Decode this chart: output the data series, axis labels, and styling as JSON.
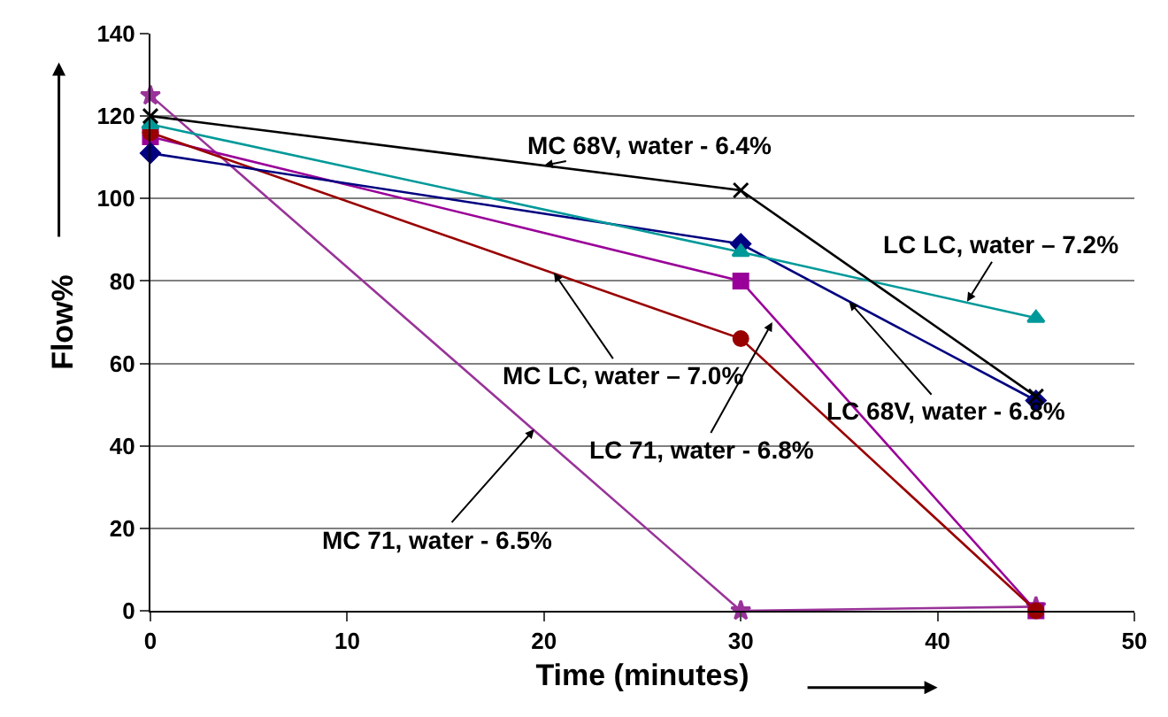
{
  "chart_data": {
    "type": "line",
    "xlabel": "Time (minutes)",
    "ylabel": "Flow%",
    "x": [
      0,
      30,
      45
    ],
    "series": [
      {
        "color": "#000000",
        "marker": "cross",
        "values": [
          120,
          102,
          52
        ]
      },
      {
        "color": "#009999",
        "marker": "triangle",
        "values": [
          118,
          87,
          71
        ]
      },
      {
        "color": "#000080",
        "marker": "diamond",
        "values": [
          111,
          89,
          51
        ]
      },
      {
        "color": "#990000",
        "marker": "circle",
        "values": [
          116,
          66,
          0
        ]
      },
      {
        "color": "#990099",
        "marker": "square",
        "values": [
          115,
          80,
          0
        ]
      },
      {
        "color": "#993399",
        "marker": "star",
        "values": [
          125,
          0,
          1
        ]
      }
    ],
    "annotations": [
      {
        "text": "MC 68V, water - 6.4%",
        "x": 20,
        "y": 108
      },
      {
        "text": "LC LC, water – 7.2%",
        "x": 41.5,
        "y": 75
      },
      {
        "text": "LC 68V, water - 6.8%",
        "x": 35.5,
        "y": 75
      },
      {
        "text": "LC 71, water - 6.8%",
        "x": 31.6,
        "y": 70
      },
      {
        "text": "MC LC, water – 7.0%",
        "x": 20.5,
        "y": 82
      },
      {
        "text": "MC 71, water - 6.5%",
        "x": 19.5,
        "y": 44
      }
    ],
    "xlim": [
      0,
      50
    ],
    "xticks": [
      0,
      10,
      20,
      30,
      40,
      50
    ],
    "ylim": [
      0,
      140
    ],
    "yticks": [
      0,
      20,
      40,
      60,
      80,
      100,
      120,
      140
    ],
    "grid": "y",
    "line_style": "solid"
  }
}
